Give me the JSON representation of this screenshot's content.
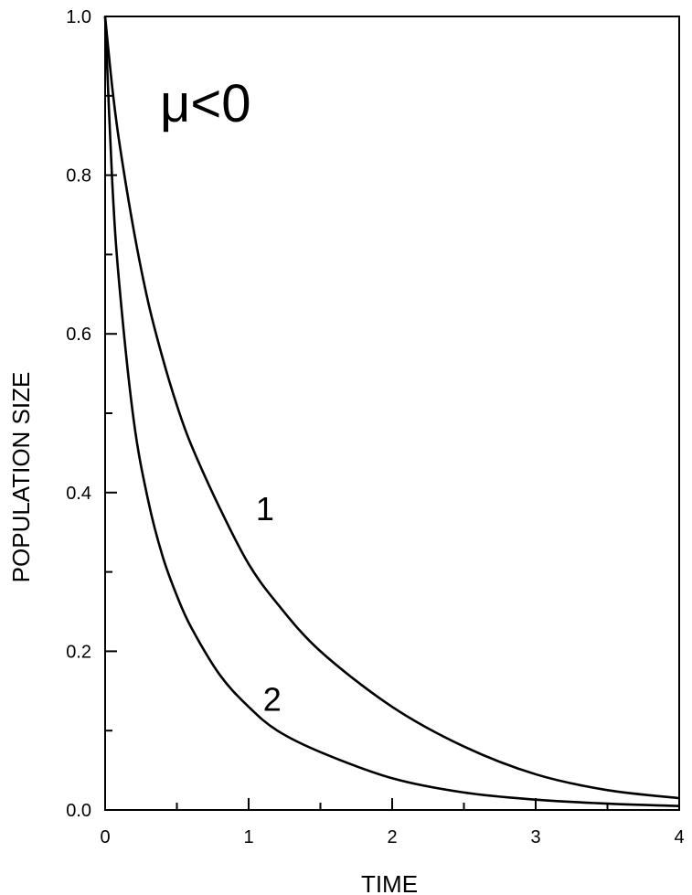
{
  "chart_data": {
    "type": "line",
    "title": "",
    "xlabel": "TIME",
    "ylabel": "POPULATION  SIZE",
    "xlim": [
      0,
      4
    ],
    "ylim": [
      0,
      1.0
    ],
    "x_ticks": [
      "0",
      "1",
      "2",
      "3",
      "4"
    ],
    "y_ticks": [
      "0.0",
      "0.2",
      "0.4",
      "0.6",
      "0.8",
      "1.0"
    ],
    "x_minor_ticks": [
      0.5,
      1.5,
      2.5,
      3.5
    ],
    "y_minor_ticks": [
      0.1,
      0.3,
      0.5,
      0.7,
      0.9
    ],
    "grid": false,
    "annotation": "μ<0",
    "x": [
      0,
      0.05,
      0.1,
      0.2,
      0.3,
      0.4,
      0.5,
      0.6,
      0.8,
      1.0,
      1.2,
      1.5,
      2.0,
      2.5,
      3.0,
      3.5,
      4.0
    ],
    "series": [
      {
        "name": "1",
        "values": [
          1.0,
          0.91,
          0.84,
          0.73,
          0.64,
          0.57,
          0.51,
          0.46,
          0.38,
          0.31,
          0.26,
          0.2,
          0.13,
          0.08,
          0.045,
          0.025,
          0.015
        ]
      },
      {
        "name": "2",
        "values": [
          1.0,
          0.79,
          0.66,
          0.49,
          0.39,
          0.32,
          0.27,
          0.23,
          0.17,
          0.13,
          0.1,
          0.073,
          0.04,
          0.022,
          0.013,
          0.008,
          0.005
        ]
      }
    ]
  }
}
